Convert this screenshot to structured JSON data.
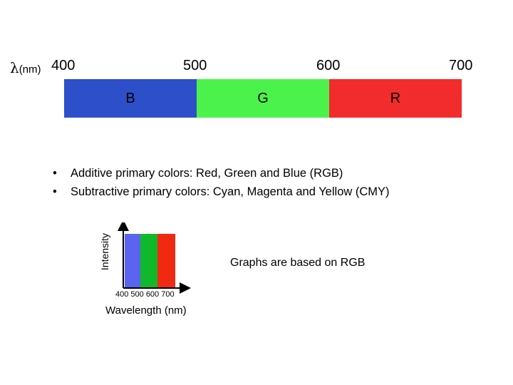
{
  "wavelength_axis": {
    "symbol": "λ",
    "unit": "(nm)",
    "ticks": [
      "400",
      "500",
      "600",
      "700"
    ]
  },
  "bands": [
    {
      "label": "B",
      "color": "#2d4fc9"
    },
    {
      "label": "G",
      "color": "#4cf24c"
    },
    {
      "label": "R",
      "color": "#f22c2c"
    }
  ],
  "bullets": [
    "Additive primary colors: Red, Green and Blue (RGB)",
    "Subtractive primary colors: Cyan, Magenta and Yellow (CMY)"
  ],
  "graph": {
    "y_label": "Intensity",
    "x_ticks": "400  500  600 700",
    "x_label": "Wavelength (nm)",
    "bars": [
      {
        "color": "#5a64f0"
      },
      {
        "color": "#10b82c"
      },
      {
        "color": "#f02a10"
      }
    ]
  },
  "note": "Graphs are based on RGB"
}
